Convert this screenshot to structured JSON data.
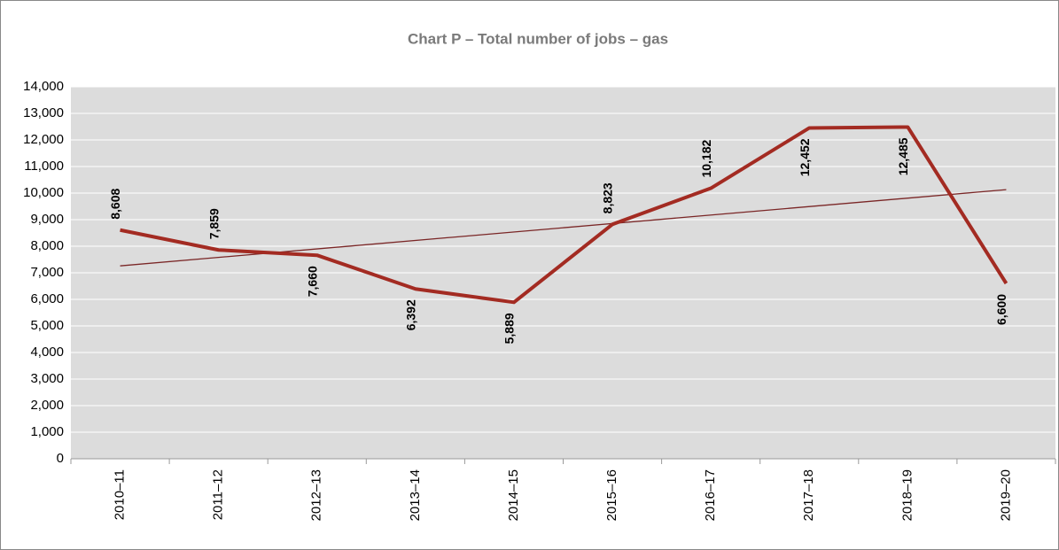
{
  "chart_data": {
    "type": "line",
    "title": "Chart P – Total number of jobs – gas",
    "categories": [
      "2010–11",
      "2011–12",
      "2012–13",
      "2013–14",
      "2014–15",
      "2015–16",
      "2016–17",
      "2017–18",
      "2018–19",
      "2019–20"
    ],
    "series": [
      {
        "name": "Total number of jobs – gas",
        "color": "#a32b22",
        "values": [
          8608,
          7859,
          7660,
          6392,
          5889,
          8823,
          10182,
          12452,
          12485,
          6600
        ],
        "value_labels": [
          "8,608",
          "7,859",
          "7,660",
          "6,392",
          "5,889",
          "8,823",
          "10,182",
          "12,452",
          "12,485",
          "6,600"
        ]
      }
    ],
    "trendline": true,
    "trendline_color": "#7a2626",
    "ylim": [
      0,
      14000
    ],
    "yticks": [
      0,
      {
        "value": 1000,
        "label": "1,000"
      },
      {
        "value": 2000,
        "label": "2,000"
      },
      {
        "value": 3000,
        "label": "3,000"
      },
      {
        "value": 4000,
        "label": "4,000"
      },
      {
        "value": 5000,
        "label": "5,000"
      },
      {
        "value": 6000,
        "label": "6,000"
      },
      {
        "value": 7000,
        "label": "7,000"
      },
      {
        "value": 8000,
        "label": "8,000"
      },
      {
        "value": 9000,
        "label": "9,000"
      },
      {
        "value": 10000,
        "label": "10,000"
      },
      {
        "value": 11000,
        "label": "11,000"
      },
      {
        "value": 12000,
        "label": "12,000"
      },
      {
        "value": 13000,
        "label": "13,000"
      },
      {
        "value": 14000,
        "label": "14,000"
      }
    ],
    "grid": true
  }
}
